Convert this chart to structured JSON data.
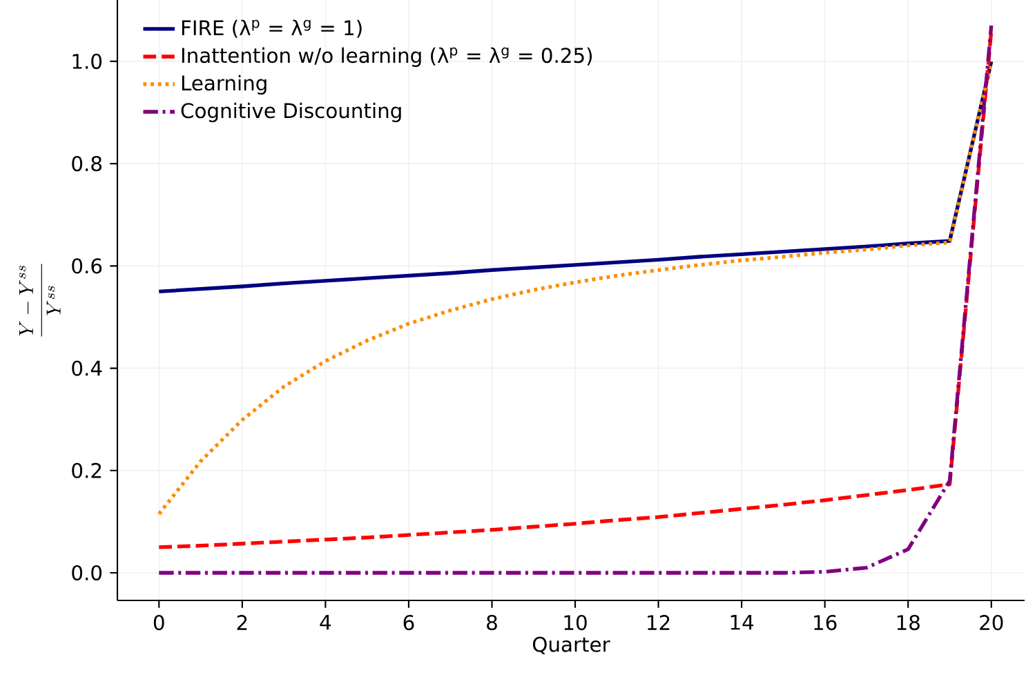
{
  "chart_data": {
    "type": "line",
    "xlabel": "Quarter",
    "ylabel": "\\frac{Y-Y^{ss}}{Y^{ss}}",
    "x": [
      0,
      1,
      2,
      3,
      4,
      5,
      6,
      7,
      8,
      9,
      10,
      11,
      12,
      13,
      14,
      15,
      16,
      17,
      18,
      19,
      20
    ],
    "series": [
      {
        "name": "FIRE (λ$^{p}$ = λ$^{g}$ = 1)",
        "color": "#000080",
        "line_style": "solid",
        "values": [
          0.55,
          0.555,
          0.56,
          0.566,
          0.571,
          0.576,
          0.581,
          0.586,
          0.592,
          0.597,
          0.602,
          0.607,
          0.612,
          0.618,
          0.623,
          0.628,
          0.633,
          0.638,
          0.644,
          0.649,
          1.0
        ]
      },
      {
        "name": "Inattention w/o learning (λ$^{p}$ = λ$^{g}$ = 0.25)",
        "color": "#ff0000",
        "line_style": "dashed",
        "values": [
          0.05,
          0.053,
          0.057,
          0.061,
          0.065,
          0.069,
          0.074,
          0.079,
          0.084,
          0.09,
          0.096,
          0.103,
          0.109,
          0.117,
          0.125,
          0.133,
          0.142,
          0.152,
          0.162,
          0.173,
          1.06
        ]
      },
      {
        "name": "Learning",
        "color": "#ff8c00",
        "line_style": "dotted",
        "values": [
          0.115,
          0.218,
          0.299,
          0.364,
          0.414,
          0.454,
          0.487,
          0.513,
          0.535,
          0.553,
          0.568,
          0.581,
          0.592,
          0.602,
          0.611,
          0.618,
          0.626,
          0.632,
          0.64,
          0.646,
          1.0
        ]
      },
      {
        "name": "Cognitive Discounting",
        "color": "#800080",
        "line_style": "dashdot",
        "values": [
          0,
          0,
          0,
          0,
          0,
          0,
          0,
          0,
          0,
          0,
          0,
          0,
          0,
          0,
          0,
          0,
          0.002,
          0.01,
          0.046,
          0.18,
          1.07
        ]
      }
    ],
    "xlim": [
      -1,
      20.8
    ],
    "ylim": [
      -0.054,
      1.12
    ],
    "xticks": [
      0,
      2,
      4,
      6,
      8,
      10,
      12,
      14,
      16,
      18,
      20
    ],
    "yticks": [
      {
        "value": 0,
        "label": "0.0"
      },
      {
        "value": 0.2,
        "label": "0.2"
      },
      {
        "value": 0.4,
        "label": "0.4"
      },
      {
        "value": 0.6,
        "label": "0.6"
      },
      {
        "value": 0.8,
        "label": "0.8"
      },
      {
        "value": 1.0,
        "label": "1.0"
      }
    ],
    "grid": true,
    "legend": "top left",
    "marker": "none"
  }
}
